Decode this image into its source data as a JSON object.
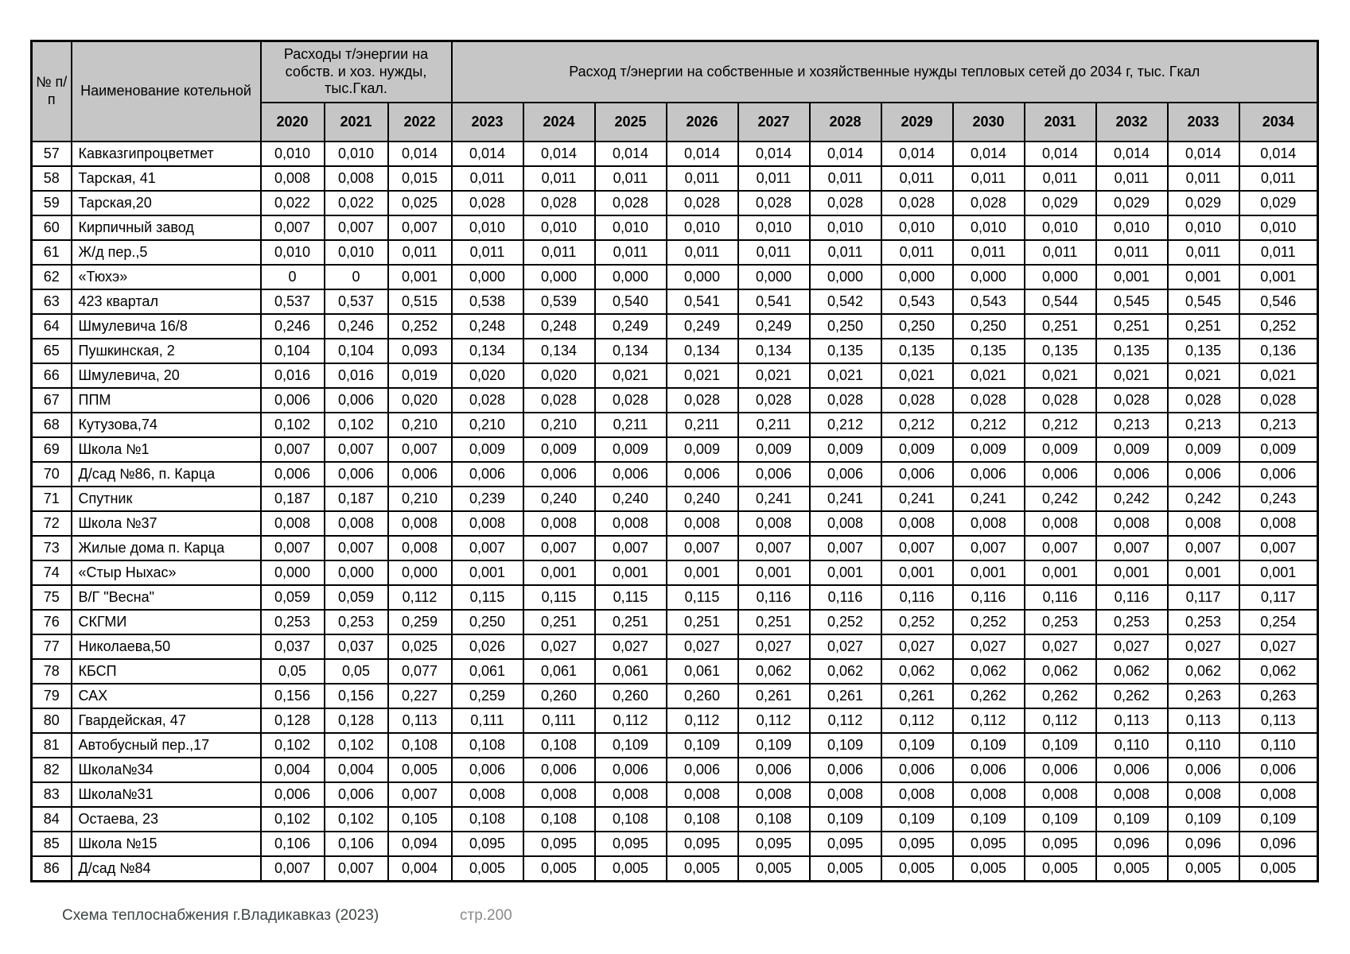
{
  "table": {
    "header": {
      "num": "№ п/п",
      "name": "Наименование котельной",
      "group_own": "Расходы т/энергии на собств. и хоз. нужды, тыс.Гкал.",
      "group_network": "Расход т/энергии на собственные и хозяйственные нужды тепловых сетей до 2034 г, тыс. Гкал",
      "years": [
        "2020",
        "2021",
        "2022",
        "2023",
        "2024",
        "2025",
        "2026",
        "2027",
        "2028",
        "2029",
        "2030",
        "2031",
        "2032",
        "2033",
        "2034"
      ]
    },
    "rows": [
      {
        "num": "57",
        "name": "Кавказгипроцветмет",
        "values": [
          "0,010",
          "0,010",
          "0,014",
          "0,014",
          "0,014",
          "0,014",
          "0,014",
          "0,014",
          "0,014",
          "0,014",
          "0,014",
          "0,014",
          "0,014",
          "0,014",
          "0,014"
        ]
      },
      {
        "num": "58",
        "name": "Тарская, 41",
        "values": [
          "0,008",
          "0,008",
          "0,015",
          "0,011",
          "0,011",
          "0,011",
          "0,011",
          "0,011",
          "0,011",
          "0,011",
          "0,011",
          "0,011",
          "0,011",
          "0,011",
          "0,011"
        ]
      },
      {
        "num": "59",
        "name": "Тарская,20",
        "values": [
          "0,022",
          "0,022",
          "0,025",
          "0,028",
          "0,028",
          "0,028",
          "0,028",
          "0,028",
          "0,028",
          "0,028",
          "0,028",
          "0,029",
          "0,029",
          "0,029",
          "0,029"
        ]
      },
      {
        "num": "60",
        "name": "Кирпичный завод",
        "values": [
          "0,007",
          "0,007",
          "0,007",
          "0,010",
          "0,010",
          "0,010",
          "0,010",
          "0,010",
          "0,010",
          "0,010",
          "0,010",
          "0,010",
          "0,010",
          "0,010",
          "0,010"
        ]
      },
      {
        "num": "61",
        "name": "Ж/д  пер.,5",
        "values": [
          "0,010",
          "0,010",
          "0,011",
          "0,011",
          "0,011",
          "0,011",
          "0,011",
          "0,011",
          "0,011",
          "0,011",
          "0,011",
          "0,011",
          "0,011",
          "0,011",
          "0,011"
        ]
      },
      {
        "num": "62",
        "name": "«Тюхэ»",
        "values": [
          "0",
          "0",
          "0,001",
          "0,000",
          "0,000",
          "0,000",
          "0,000",
          "0,000",
          "0,000",
          "0,000",
          "0,000",
          "0,000",
          "0,001",
          "0,001",
          "0,001"
        ]
      },
      {
        "num": "63",
        "name": "423 квартал",
        "values": [
          "0,537",
          "0,537",
          "0,515",
          "0,538",
          "0,539",
          "0,540",
          "0,541",
          "0,541",
          "0,542",
          "0,543",
          "0,543",
          "0,544",
          "0,545",
          "0,545",
          "0,546"
        ]
      },
      {
        "num": "64",
        "name": "Шмулевича 16/8",
        "values": [
          "0,246",
          "0,246",
          "0,252",
          "0,248",
          "0,248",
          "0,249",
          "0,249",
          "0,249",
          "0,250",
          "0,250",
          "0,250",
          "0,251",
          "0,251",
          "0,251",
          "0,252"
        ]
      },
      {
        "num": "65",
        "name": "Пушкинская, 2",
        "values": [
          "0,104",
          "0,104",
          "0,093",
          "0,134",
          "0,134",
          "0,134",
          "0,134",
          "0,134",
          "0,135",
          "0,135",
          "0,135",
          "0,135",
          "0,135",
          "0,135",
          "0,136"
        ]
      },
      {
        "num": "66",
        "name": "Шмулевича, 20",
        "values": [
          "0,016",
          "0,016",
          "0,019",
          "0,020",
          "0,020",
          "0,021",
          "0,021",
          "0,021",
          "0,021",
          "0,021",
          "0,021",
          "0,021",
          "0,021",
          "0,021",
          "0,021"
        ]
      },
      {
        "num": "67",
        "name": "ППМ",
        "values": [
          "0,006",
          "0,006",
          "0,020",
          "0,028",
          "0,028",
          "0,028",
          "0,028",
          "0,028",
          "0,028",
          "0,028",
          "0,028",
          "0,028",
          "0,028",
          "0,028",
          "0,028"
        ]
      },
      {
        "num": "68",
        "name": "Кутузова,74",
        "values": [
          "0,102",
          "0,102",
          "0,210",
          "0,210",
          "0,210",
          "0,211",
          "0,211",
          "0,211",
          "0,212",
          "0,212",
          "0,212",
          "0,212",
          "0,213",
          "0,213",
          "0,213"
        ]
      },
      {
        "num": "69",
        "name": "Школа №1",
        "values": [
          "0,007",
          "0,007",
          "0,007",
          "0,009",
          "0,009",
          "0,009",
          "0,009",
          "0,009",
          "0,009",
          "0,009",
          "0,009",
          "0,009",
          "0,009",
          "0,009",
          "0,009"
        ]
      },
      {
        "num": "70",
        "name": "Д/сад №86, п. Карца",
        "values": [
          "0,006",
          "0,006",
          "0,006",
          "0,006",
          "0,006",
          "0,006",
          "0,006",
          "0,006",
          "0,006",
          "0,006",
          "0,006",
          "0,006",
          "0,006",
          "0,006",
          "0,006"
        ]
      },
      {
        "num": "71",
        "name": "Спутник",
        "values": [
          "0,187",
          "0,187",
          "0,210",
          "0,239",
          "0,240",
          "0,240",
          "0,240",
          "0,241",
          "0,241",
          "0,241",
          "0,241",
          "0,242",
          "0,242",
          "0,242",
          "0,243"
        ]
      },
      {
        "num": "72",
        "name": "Школа №37",
        "values": [
          "0,008",
          "0,008",
          "0,008",
          "0,008",
          "0,008",
          "0,008",
          "0,008",
          "0,008",
          "0,008",
          "0,008",
          "0,008",
          "0,008",
          "0,008",
          "0,008",
          "0,008"
        ]
      },
      {
        "num": "73",
        "name": "Жилые дома п. Карца",
        "values": [
          "0,007",
          "0,007",
          "0,008",
          "0,007",
          "0,007",
          "0,007",
          "0,007",
          "0,007",
          "0,007",
          "0,007",
          "0,007",
          "0,007",
          "0,007",
          "0,007",
          "0,007"
        ]
      },
      {
        "num": "74",
        "name": "«Стыр Ныхас»",
        "values": [
          "0,000",
          "0,000",
          "0,000",
          "0,001",
          "0,001",
          "0,001",
          "0,001",
          "0,001",
          "0,001",
          "0,001",
          "0,001",
          "0,001",
          "0,001",
          "0,001",
          "0,001"
        ]
      },
      {
        "num": "75",
        "name": "В/Г \"Весна\"",
        "values": [
          "0,059",
          "0,059",
          "0,112",
          "0,115",
          "0,115",
          "0,115",
          "0,115",
          "0,116",
          "0,116",
          "0,116",
          "0,116",
          "0,116",
          "0,116",
          "0,117",
          "0,117"
        ]
      },
      {
        "num": "76",
        "name": "СКГМИ",
        "values": [
          "0,253",
          "0,253",
          "0,259",
          "0,250",
          "0,251",
          "0,251",
          "0,251",
          "0,251",
          "0,252",
          "0,252",
          "0,252",
          "0,253",
          "0,253",
          "0,253",
          "0,254"
        ]
      },
      {
        "num": "77",
        "name": "Николаева,50",
        "values": [
          "0,037",
          "0,037",
          "0,025",
          "0,026",
          "0,027",
          "0,027",
          "0,027",
          "0,027",
          "0,027",
          "0,027",
          "0,027",
          "0,027",
          "0,027",
          "0,027",
          "0,027"
        ]
      },
      {
        "num": "78",
        "name": "КБСП",
        "values": [
          "0,05",
          "0,05",
          "0,077",
          "0,061",
          "0,061",
          "0,061",
          "0,061",
          "0,062",
          "0,062",
          "0,062",
          "0,062",
          "0,062",
          "0,062",
          "0,062",
          "0,062"
        ]
      },
      {
        "num": "79",
        "name": "САХ",
        "values": [
          "0,156",
          "0,156",
          "0,227",
          "0,259",
          "0,260",
          "0,260",
          "0,260",
          "0,261",
          "0,261",
          "0,261",
          "0,262",
          "0,262",
          "0,262",
          "0,263",
          "0,263"
        ]
      },
      {
        "num": "80",
        "name": "Гвардейская, 47",
        "values": [
          "0,128",
          "0,128",
          "0,113",
          "0,111",
          "0,111",
          "0,112",
          "0,112",
          "0,112",
          "0,112",
          "0,112",
          "0,112",
          "0,112",
          "0,113",
          "0,113",
          "0,113"
        ]
      },
      {
        "num": "81",
        "name": "Автобусный пер.,17",
        "values": [
          "0,102",
          "0,102",
          "0,108",
          "0,108",
          "0,108",
          "0,109",
          "0,109",
          "0,109",
          "0,109",
          "0,109",
          "0,109",
          "0,109",
          "0,110",
          "0,110",
          "0,110"
        ]
      },
      {
        "num": "82",
        "name": "Школа№34",
        "values": [
          "0,004",
          "0,004",
          "0,005",
          "0,006",
          "0,006",
          "0,006",
          "0,006",
          "0,006",
          "0,006",
          "0,006",
          "0,006",
          "0,006",
          "0,006",
          "0,006",
          "0,006"
        ]
      },
      {
        "num": "83",
        "name": "Школа№31",
        "values": [
          "0,006",
          "0,006",
          "0,007",
          "0,008",
          "0,008",
          "0,008",
          "0,008",
          "0,008",
          "0,008",
          "0,008",
          "0,008",
          "0,008",
          "0,008",
          "0,008",
          "0,008"
        ]
      },
      {
        "num": "84",
        "name": "Остаева, 23",
        "values": [
          "0,102",
          "0,102",
          "0,105",
          "0,108",
          "0,108",
          "0,108",
          "0,108",
          "0,108",
          "0,109",
          "0,109",
          "0,109",
          "0,109",
          "0,109",
          "0,109",
          "0,109"
        ]
      },
      {
        "num": "85",
        "name": "Школа №15",
        "values": [
          "0,106",
          "0,106",
          "0,094",
          "0,095",
          "0,095",
          "0,095",
          "0,095",
          "0,095",
          "0,095",
          "0,095",
          "0,095",
          "0,095",
          "0,096",
          "0,096",
          "0,096"
        ]
      },
      {
        "num": "86",
        "name": "Д/сад №84",
        "values": [
          "0,007",
          "0,007",
          "0,004",
          "0,005",
          "0,005",
          "0,005",
          "0,005",
          "0,005",
          "0,005",
          "0,005",
          "0,005",
          "0,005",
          "0,005",
          "0,005",
          "0,005"
        ]
      }
    ]
  },
  "footer": {
    "title": "Схема теплоснабжения г.Владикавказ (2023)",
    "page": "стр.200"
  }
}
